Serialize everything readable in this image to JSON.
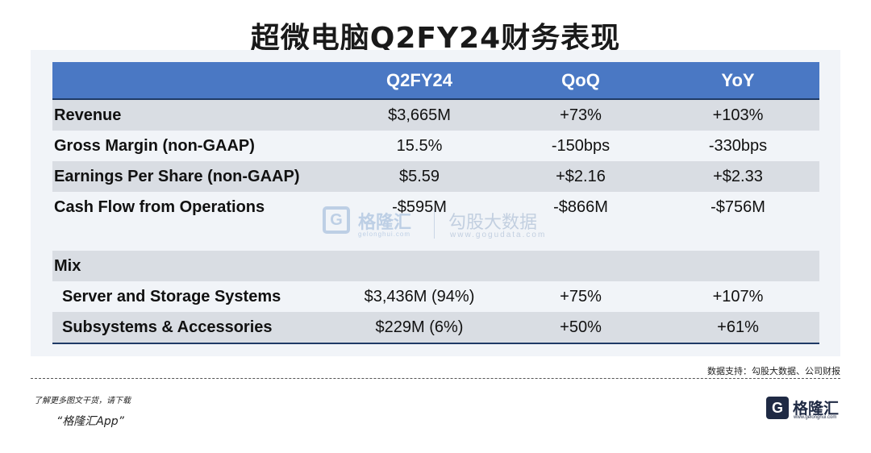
{
  "title": "超微电脑Q2FY24财务表现",
  "table": {
    "headers": [
      "",
      "Q2FY24",
      "QoQ",
      "YoY"
    ],
    "rows": [
      {
        "label": "Revenue",
        "q": "$3,665M",
        "qoq": "+73%",
        "yoy": "+103%"
      },
      {
        "label": "Gross Margin (non-GAAP)",
        "q": "15.5%",
        "qoq": "-150bps",
        "yoy": "-330bps"
      },
      {
        "label": "Earnings Per Share (non-GAAP)",
        "q": "$5.59",
        "qoq": "+$2.16",
        "yoy": "+$2.33"
      },
      {
        "label": "Cash Flow from Operations",
        "q": "-$595M",
        "qoq": "-$866M",
        "yoy": "-$756M"
      }
    ],
    "mix_label": "Mix",
    "mix_rows": [
      {
        "label": "Server and Storage Systems",
        "q": "$3,436M (94%)",
        "qoq": "+75%",
        "yoy": "+107%"
      },
      {
        "label": "Subsystems & Accessories",
        "q": "$229M (6%)",
        "qoq": "+50%",
        "yoy": "+61%"
      }
    ]
  },
  "watermark": {
    "logo_letter": "G",
    "brand": "格隆汇",
    "brand_sub": "gelonghui.com",
    "name": "勾股大数据",
    "url": "www.gogudata.com"
  },
  "source": "数据支持：勾股大数据、公司财报",
  "promo": "了解更多图文干货，请下载",
  "app": "“格隆汇App”",
  "logo": {
    "letter": "G",
    "text": "格隆汇",
    "sub": "www.gelonghui.com"
  }
}
